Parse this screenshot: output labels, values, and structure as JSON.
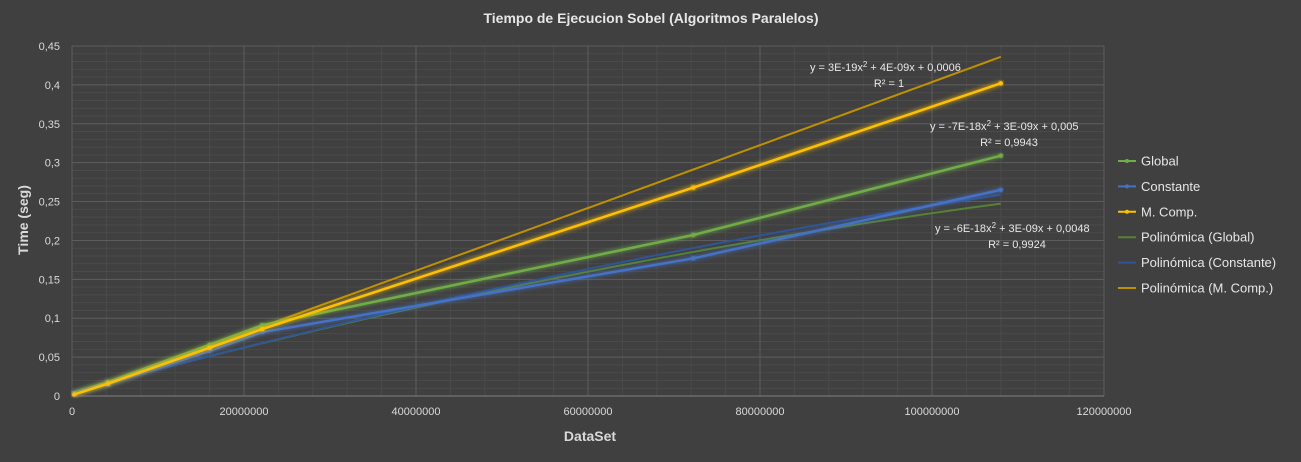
{
  "chart_data": {
    "type": "line",
    "title": "Tiempo de Ejecucion Sobel (Algoritmos Paralelos)",
    "xlabel": "DataSet",
    "ylabel": "Time (seg)",
    "xlim": [
      0,
      120000000
    ],
    "ylim": [
      0,
      0.45
    ],
    "grid": true,
    "legend_position": "right",
    "x_ticks": [
      "0",
      "20000000",
      "40000000",
      "60000000",
      "80000000",
      "100000000",
      "120000000"
    ],
    "y_ticks": [
      "0",
      "0,05",
      "0,1",
      "0,15",
      "0,2",
      "0,25",
      "0,3",
      "0,35",
      "0,4",
      "0,45"
    ],
    "series": [
      {
        "name": "Global",
        "color": "#70ad47",
        "x": [
          262144,
          4194304,
          16000000,
          22118400,
          72250000,
          108000000
        ],
        "y": [
          0.004,
          0.018,
          0.066,
          0.091,
          0.207,
          0.309
        ]
      },
      {
        "name": "Constante",
        "color": "#4472c4",
        "x": [
          262144,
          4194304,
          16000000,
          22118400,
          72250000,
          108000000
        ],
        "y": [
          0.003,
          0.015,
          0.058,
          0.082,
          0.177,
          0.265
        ]
      },
      {
        "name": "M. Comp.",
        "color": "#ffc000",
        "x": [
          262144,
          4194304,
          16000000,
          22118400,
          72250000,
          108000000
        ],
        "y": [
          0.002,
          0.016,
          0.062,
          0.086,
          0.268,
          0.402
        ]
      }
    ],
    "trendlines": [
      {
        "name": "Polinómica (Global)",
        "color": "#548235",
        "coeffs": [
          -7e-18,
          3e-09,
          0.005
        ],
        "equation": "y = -7E-18x",
        "equation_rest": " + 3E-09x + 0,005",
        "r2": "R² = 0,9943"
      },
      {
        "name": "Polinómica (Constante)",
        "color": "#2f5597",
        "coeffs": [
          -6e-18,
          3e-09,
          0.0048
        ],
        "equation": "y = -6E-18x",
        "equation_rest": " + 3E-09x + 0,0048",
        "r2": "R² = 0,9924"
      },
      {
        "name": "Polinómica (M. Comp.)",
        "color": "#bf9000",
        "coeffs": [
          3e-19,
          4e-09,
          0.0006
        ],
        "equation": "y = 3E-19x",
        "equation_rest": " + 4E-09x + 0,0006",
        "r2": "R² = 1"
      }
    ]
  }
}
